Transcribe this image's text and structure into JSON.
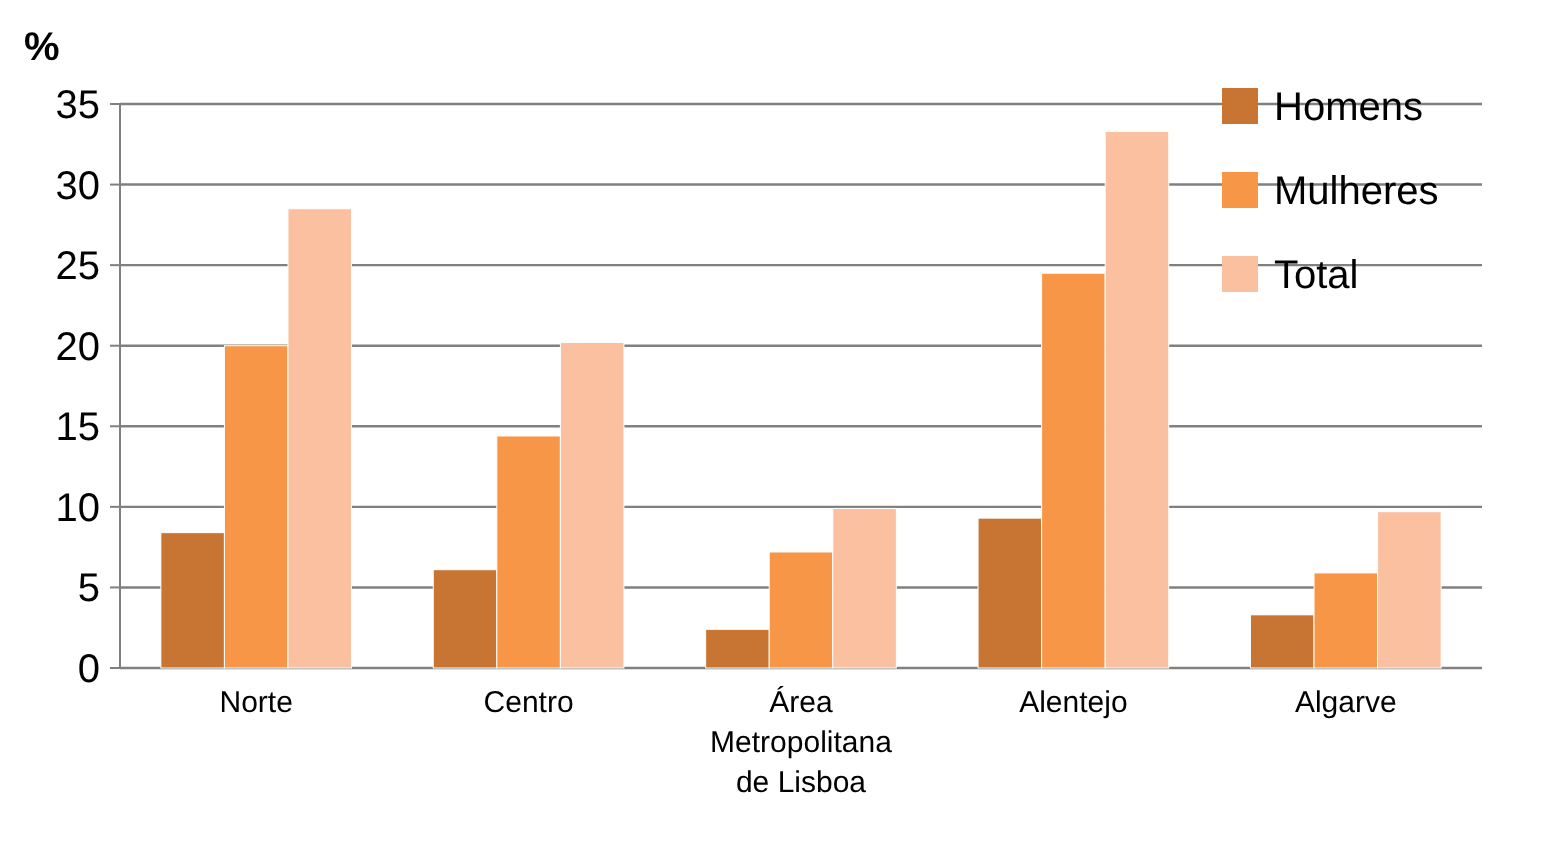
{
  "chart_data": {
    "type": "bar",
    "ylabel": "%",
    "categories": [
      "Norte",
      "Centro",
      "Área Metropolitana de Lisboa",
      "Alentejo",
      "Algarve"
    ],
    "series": [
      {
        "name": "Homens",
        "color": "#c87533",
        "values": [
          8.4,
          6.1,
          2.4,
          9.3,
          3.3
        ]
      },
      {
        "name": "Mulheres",
        "color": "#f79646",
        "values": [
          20,
          14.4,
          7.2,
          24.5,
          5.9
        ]
      },
      {
        "name": "Total",
        "color": "#fac0a0",
        "values": [
          28.5,
          20.2,
          9.9,
          33.3,
          9.7
        ]
      }
    ],
    "ylim": [
      0,
      35
    ],
    "yticks": [
      0,
      5,
      10,
      15,
      20,
      25,
      30,
      35
    ],
    "grid": "y",
    "legend": "top right"
  }
}
